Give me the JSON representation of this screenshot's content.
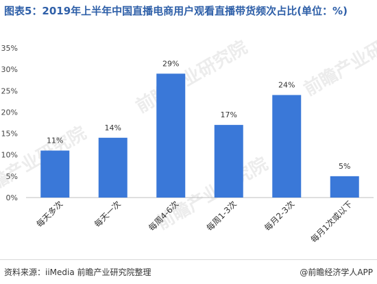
{
  "title": "图表5：2019年上半年中国直播电商用户观看直播带货频次占比(单位：%)",
  "chart_data": {
    "type": "bar",
    "categories": [
      "每天多次",
      "每天一次",
      "每周4-6次",
      "每周1-3次",
      "每月2-3次",
      "每月1次或以下"
    ],
    "values": [
      11,
      14,
      29,
      17,
      24,
      5
    ],
    "value_suffix": "%",
    "ylim": [
      0,
      35
    ],
    "yticks": [
      "0%",
      "5%",
      "10%",
      "15%",
      "20%",
      "25%",
      "30%",
      "35%"
    ],
    "grid": false,
    "bar_color": "#3a78d8"
  },
  "watermark": "前瞻产业研究院",
  "footer": {
    "source": "资料来源：iiMedia 前瞻产业研究院整理",
    "credit": "@前瞻经济学人APP"
  }
}
